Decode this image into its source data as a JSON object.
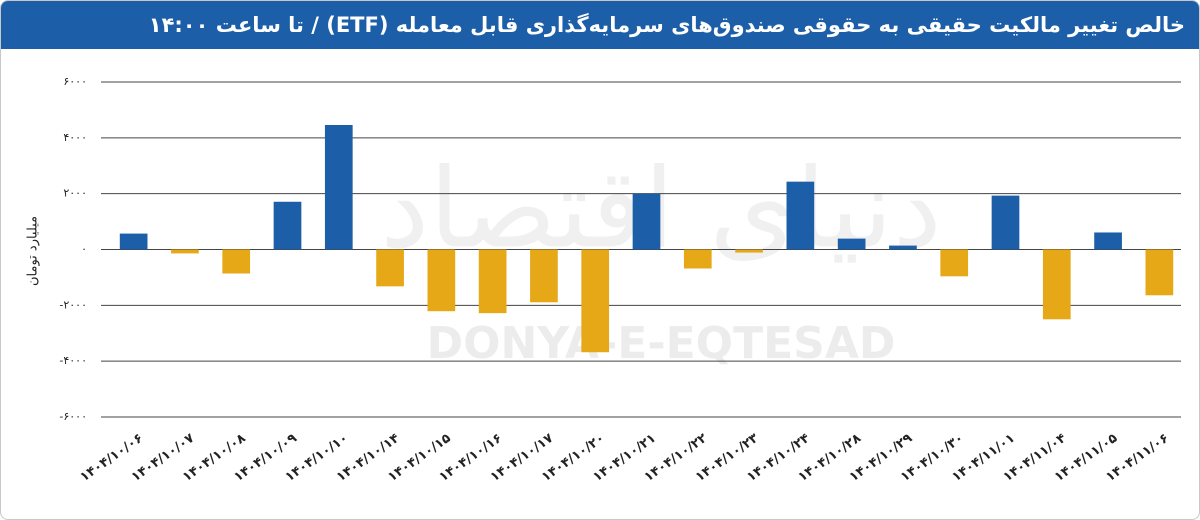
{
  "chart_data": {
    "type": "bar",
    "title": "خالص تغییر مالکیت حقیقی به حقوقی صندوق‌های سرمایه‌گذاری قابل معامله (ETF) / تا ساعت ۱۴:۰۰",
    "y_label": "میلیارد تومان",
    "watermark": "DONYA-E-EQTESAD",
    "watermark_fa": "دنیای اقتصاد",
    "categories": [
      "۱۴۰۴/۱۰/۰۶",
      "۱۴۰۴/۱۰/۰۷",
      "۱۴۰۴/۱۰/۰۸",
      "۱۴۰۴/۱۰/۰۹",
      "۱۴۰۴/۱۰/۱۰",
      "۱۴۰۴/۱۰/۱۴",
      "۱۴۰۴/۱۰/۱۵",
      "۱۴۰۴/۱۰/۱۶",
      "۱۴۰۴/۱۰/۱۷",
      "۱۴۰۴/۱۰/۲۰",
      "۱۴۰۴/۱۰/۲۱",
      "۱۴۰۴/۱۰/۲۲",
      "۱۴۰۴/۱۰/۲۳",
      "۱۴۰۴/۱۰/۲۴",
      "۱۴۰۴/۱۰/۲۸",
      "۱۴۰۴/۱۰/۲۹",
      "۱۴۰۴/۱۰/۳۰",
      "۱۴۰۴/۱۱/۰۱",
      "۱۴۰۴/۱۱/۰۴",
      "۱۴۰۴/۱۱/۰۵",
      "۱۴۰۴/۱۱/۰۶"
    ],
    "values": [
      570,
      -140,
      -860,
      1710,
      4460,
      -1320,
      -2210,
      -2280,
      -1890,
      -3680,
      2000,
      -680,
      -110,
      2430,
      390,
      140,
      -960,
      1930,
      -2500,
      610,
      -1640
    ],
    "color": "#1d5ea8",
    "negative_color": "#e6a817",
    "ylim": [
      -6000,
      6000
    ],
    "yticks": [
      {
        "value": -6000,
        "label": "-۶۰۰۰"
      },
      {
        "value": -4000,
        "label": "-۴۰۰۰"
      },
      {
        "value": -2000,
        "label": "-۲۰۰۰"
      },
      {
        "value": 0,
        "label": "۰"
      },
      {
        "value": 2000,
        "label": "۲۰۰۰"
      },
      {
        "value": 4000,
        "label": "۴۰۰۰"
      },
      {
        "value": 6000,
        "label": "۶۰۰۰"
      }
    ],
    "grid": true
  }
}
